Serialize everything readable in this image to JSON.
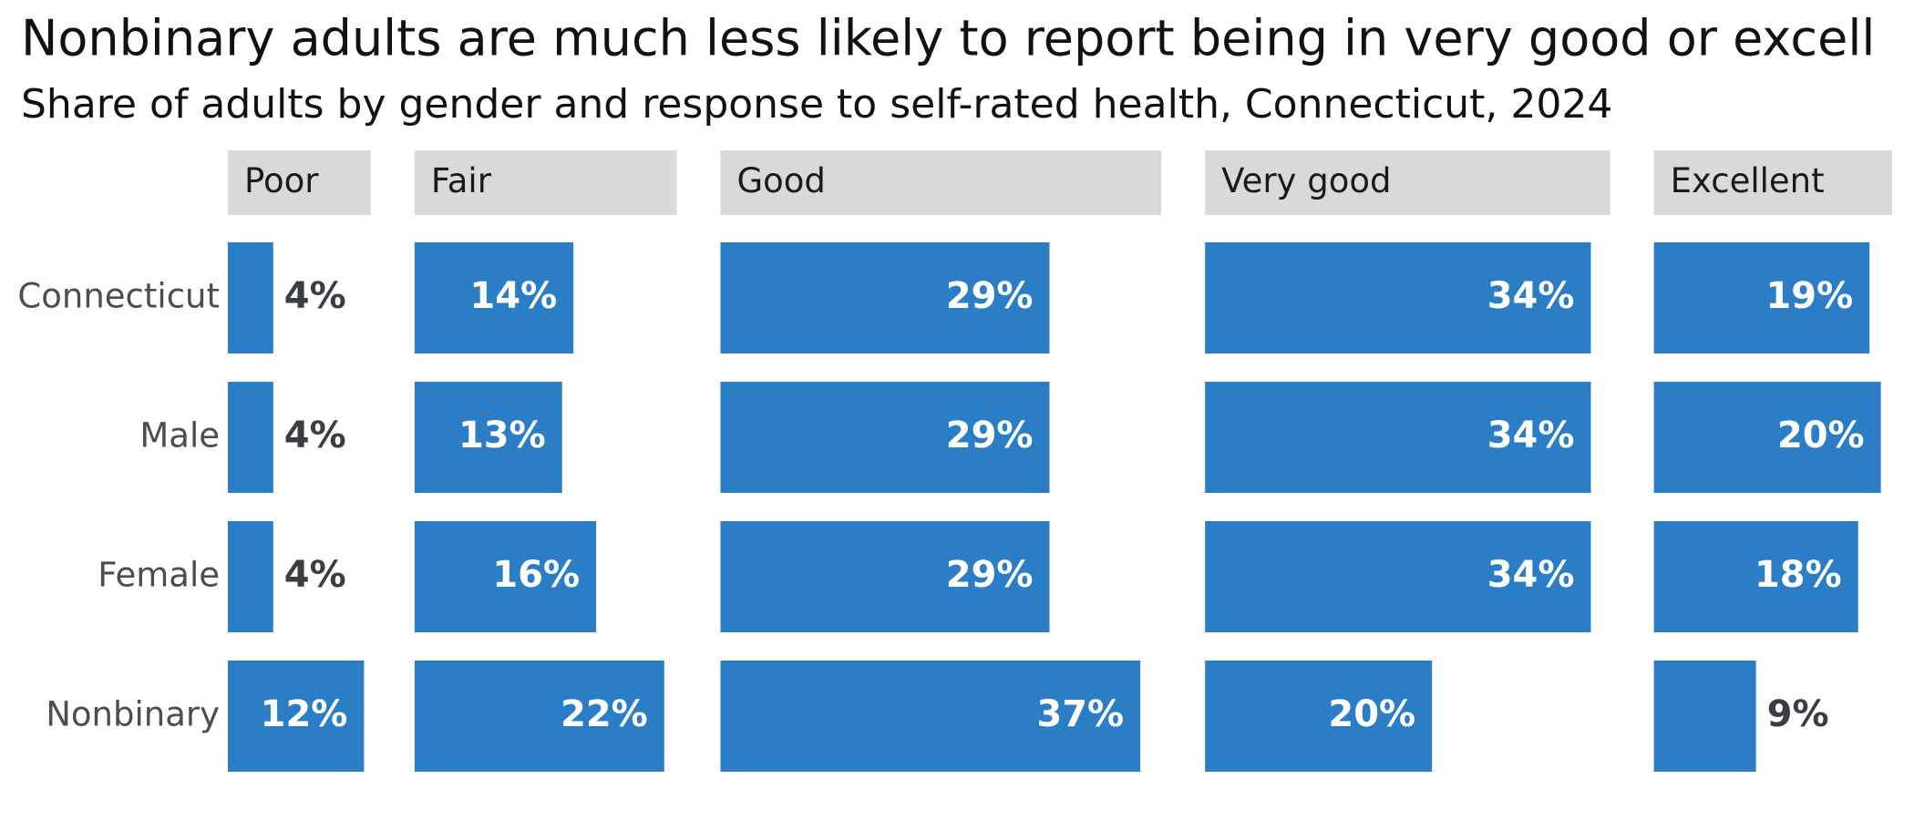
{
  "chart_data": {
    "type": "bar",
    "title": "Nonbinary adults are much less likely to report being in very good or excell",
    "subtitle": "Share of adults by gender and response to self-rated health, Connecticut, 2024",
    "categories": [
      "Connecticut",
      "Male",
      "Female",
      "Nonbinary"
    ],
    "series": [
      {
        "name": "Poor",
        "color": "#2b7ec6",
        "values": [
          4,
          4,
          4,
          12
        ],
        "value_labels": [
          "4%",
          "4%",
          "4%",
          "12%"
        ]
      },
      {
        "name": "Fair",
        "color": "#2b7ec6",
        "values": [
          14,
          13,
          16,
          22
        ],
        "value_labels": [
          "14%",
          "13%",
          "16%",
          "22%"
        ]
      },
      {
        "name": "Good",
        "color": "#2b7ec6",
        "values": [
          29,
          29,
          29,
          37
        ],
        "value_labels": [
          "29%",
          "29%",
          "29%",
          "37%"
        ]
      },
      {
        "name": "Very good",
        "color": "#2b7ec6",
        "values": [
          34,
          34,
          34,
          20
        ],
        "value_labels": [
          "34%",
          "34%",
          "34%",
          "20%"
        ]
      },
      {
        "name": "Excellent",
        "color": "#2b7ec6",
        "values": [
          19,
          20,
          18,
          9
        ],
        "value_labels": [
          "19%",
          "20%",
          "18%",
          "9%"
        ]
      }
    ]
  }
}
